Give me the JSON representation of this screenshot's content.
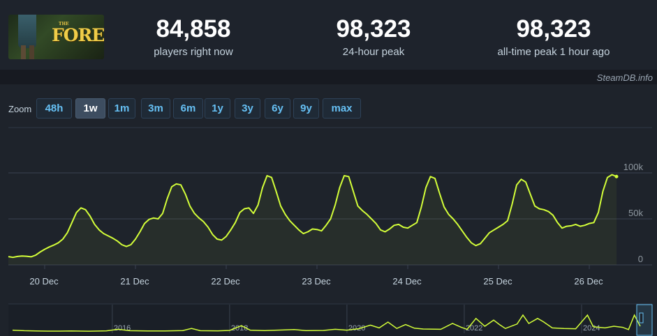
{
  "header": {
    "game_logo": {
      "small": "THE",
      "title": "FOREST"
    },
    "stats": [
      {
        "value": "84,858",
        "label": "players right now"
      },
      {
        "value": "98,323",
        "label": "24-hour peak"
      },
      {
        "value": "98,323",
        "label": "all-time peak 1 hour ago"
      }
    ],
    "credit": "SteamDB.info"
  },
  "zoom": {
    "label": "Zoom",
    "options": [
      "48h",
      "1w",
      "1m",
      "3m",
      "6m",
      "1y",
      "3y",
      "6y",
      "9y",
      "max"
    ],
    "selected": "1w"
  },
  "colors": {
    "line": "#d4ff39",
    "background": "#1e232b",
    "grid": "#3a4250",
    "accent": "#66c0f4"
  },
  "chart_data": [
    {
      "type": "line",
      "title": "",
      "xlabel": "",
      "ylabel": "",
      "x_tick_labels": [
        "20 Dec",
        "21 Dec",
        "22 Dec",
        "23 Dec",
        "24 Dec",
        "25 Dec",
        "26 Dec"
      ],
      "y_tick_labels": [
        "0",
        "50k",
        "100k"
      ],
      "ylim": [
        0,
        100000
      ],
      "x_range_days": [
        19.6,
        26.6
      ],
      "grid": true,
      "legend": "none",
      "series": [
        {
          "points": [
            [
              19.6,
              9000
            ],
            [
              19.65,
              8200
            ],
            [
              19.7,
              9200
            ],
            [
              19.75,
              9600
            ],
            [
              19.8,
              9400
            ],
            [
              19.85,
              8800
            ],
            [
              19.9,
              10500
            ],
            [
              19.95,
              14000
            ],
            [
              20.0,
              17000
            ],
            [
              20.05,
              19500
            ],
            [
              20.1,
              21500
            ],
            [
              20.15,
              24000
            ],
            [
              20.2,
              28000
            ],
            [
              20.25,
              35000
            ],
            [
              20.3,
              46000
            ],
            [
              20.35,
              57000
            ],
            [
              20.4,
              62000
            ],
            [
              20.45,
              60000
            ],
            [
              20.5,
              53000
            ],
            [
              20.55,
              44000
            ],
            [
              20.6,
              38000
            ],
            [
              20.65,
              34000
            ],
            [
              20.7,
              31500
            ],
            [
              20.75,
              29000
            ],
            [
              20.8,
              26000
            ],
            [
              20.85,
              22000
            ],
            [
              20.9,
              20000
            ],
            [
              20.95,
              22000
            ],
            [
              21.0,
              28000
            ],
            [
              21.05,
              36000
            ],
            [
              21.1,
              45000
            ],
            [
              21.15,
              49500
            ],
            [
              21.2,
              51000
            ],
            [
              21.25,
              50000
            ],
            [
              21.3,
              56000
            ],
            [
              21.35,
              72000
            ],
            [
              21.4,
              85000
            ],
            [
              21.45,
              88000
            ],
            [
              21.5,
              87000
            ],
            [
              21.55,
              77000
            ],
            [
              21.6,
              64000
            ],
            [
              21.65,
              56000
            ],
            [
              21.7,
              51000
            ],
            [
              21.75,
              47000
            ],
            [
              21.8,
              41000
            ],
            [
              21.85,
              33000
            ],
            [
              21.9,
              28000
            ],
            [
              21.95,
              27000
            ],
            [
              22.0,
              31000
            ],
            [
              22.05,
              38000
            ],
            [
              22.1,
              46000
            ],
            [
              22.15,
              57000
            ],
            [
              22.2,
              61000
            ],
            [
              22.25,
              62000
            ],
            [
              22.3,
              56000
            ],
            [
              22.35,
              65000
            ],
            [
              22.4,
              84000
            ],
            [
              22.45,
              97000
            ],
            [
              22.5,
              95000
            ],
            [
              22.55,
              80000
            ],
            [
              22.6,
              64000
            ],
            [
              22.65,
              55000
            ],
            [
              22.7,
              48000
            ],
            [
              22.75,
              43000
            ],
            [
              22.8,
              38000
            ],
            [
              22.85,
              34000
            ],
            [
              22.9,
              36000
            ],
            [
              22.95,
              39000
            ],
            [
              23.0,
              38500
            ],
            [
              23.05,
              37000
            ],
            [
              23.1,
              43000
            ],
            [
              23.15,
              50000
            ],
            [
              23.2,
              65000
            ],
            [
              23.25,
              84000
            ],
            [
              23.3,
              97000
            ],
            [
              23.35,
              96000
            ],
            [
              23.4,
              80000
            ],
            [
              23.45,
              64000
            ],
            [
              23.5,
              59000
            ],
            [
              23.55,
              55000
            ],
            [
              23.6,
              50000
            ],
            [
              23.65,
              45000
            ],
            [
              23.7,
              38000
            ],
            [
              23.75,
              36000
            ],
            [
              23.8,
              39000
            ],
            [
              23.85,
              43000
            ],
            [
              23.9,
              44000
            ],
            [
              23.95,
              41000
            ],
            [
              24.0,
              40000
            ],
            [
              24.05,
              43000
            ],
            [
              24.1,
              46000
            ],
            [
              24.15,
              63000
            ],
            [
              24.2,
              84000
            ],
            [
              24.25,
              96000
            ],
            [
              24.3,
              94000
            ],
            [
              24.35,
              78000
            ],
            [
              24.4,
              63000
            ],
            [
              24.45,
              55000
            ],
            [
              24.5,
              50000
            ],
            [
              24.55,
              44000
            ],
            [
              24.6,
              37000
            ],
            [
              24.65,
              30000
            ],
            [
              24.7,
              24000
            ],
            [
              24.75,
              21000
            ],
            [
              24.8,
              23000
            ],
            [
              24.85,
              29000
            ],
            [
              24.9,
              35000
            ],
            [
              24.95,
              38000
            ],
            [
              25.0,
              41000
            ],
            [
              25.05,
              44000
            ],
            [
              25.1,
              48000
            ],
            [
              25.15,
              66000
            ],
            [
              25.2,
              87000
            ],
            [
              25.25,
              93000
            ],
            [
              25.3,
              90000
            ],
            [
              25.35,
              77000
            ],
            [
              25.4,
              64000
            ],
            [
              25.45,
              61000
            ],
            [
              25.5,
              60000
            ],
            [
              25.55,
              58000
            ],
            [
              25.6,
              54000
            ],
            [
              25.65,
              46000
            ],
            [
              25.7,
              40000
            ],
            [
              25.75,
              42000
            ],
            [
              25.8,
              42500
            ],
            [
              25.85,
              44000
            ],
            [
              25.9,
              42000
            ],
            [
              25.95,
              43000
            ],
            [
              26.0,
              45000
            ],
            [
              26.05,
              46000
            ],
            [
              26.1,
              57000
            ],
            [
              26.15,
              80000
            ],
            [
              26.2,
              95000
            ],
            [
              26.25,
              98000
            ],
            [
              26.3,
              96000
            ]
          ]
        }
      ]
    },
    {
      "type": "line",
      "title": "",
      "xlabel": "",
      "ylabel": "",
      "x_tick_labels": [
        "2016",
        "2018",
        "2020",
        "2022",
        "2024"
      ],
      "x_range": [
        2014.3,
        2025.0
      ],
      "ylim": [
        0,
        100000
      ],
      "legend": "none",
      "series": [
        {
          "points": [
            [
              2014.3,
              6000
            ],
            [
              2014.5,
              4000
            ],
            [
              2014.7,
              3000
            ],
            [
              2014.9,
              2500
            ],
            [
              2015.1,
              2500
            ],
            [
              2015.3,
              3000
            ],
            [
              2015.6,
              2200
            ],
            [
              2015.9,
              3500
            ],
            [
              2016.1,
              9000
            ],
            [
              2016.3,
              4000
            ],
            [
              2016.6,
              3000
            ],
            [
              2016.9,
              3200
            ],
            [
              2017.2,
              4500
            ],
            [
              2017.35,
              12000
            ],
            [
              2017.5,
              4000
            ],
            [
              2017.8,
              3500
            ],
            [
              2018.0,
              5000
            ],
            [
              2018.2,
              22000
            ],
            [
              2018.35,
              6000
            ],
            [
              2018.6,
              4500
            ],
            [
              2018.9,
              6500
            ],
            [
              2019.1,
              8000
            ],
            [
              2019.3,
              4500
            ],
            [
              2019.6,
              5000
            ],
            [
              2019.8,
              9000
            ],
            [
              2020.0,
              6000
            ],
            [
              2020.2,
              11000
            ],
            [
              2020.4,
              24000
            ],
            [
              2020.55,
              14000
            ],
            [
              2020.7,
              35000
            ],
            [
              2020.85,
              12000
            ],
            [
              2021.0,
              26000
            ],
            [
              2021.15,
              13000
            ],
            [
              2021.3,
              10000
            ],
            [
              2021.6,
              9000
            ],
            [
              2021.8,
              30000
            ],
            [
              2021.95,
              16000
            ],
            [
              2022.05,
              9000
            ],
            [
              2022.2,
              48000
            ],
            [
              2022.35,
              20000
            ],
            [
              2022.5,
              42000
            ],
            [
              2022.6,
              26000
            ],
            [
              2022.7,
              12000
            ],
            [
              2022.9,
              28000
            ],
            [
              2023.0,
              60000
            ],
            [
              2023.1,
              30000
            ],
            [
              2023.25,
              48000
            ],
            [
              2023.35,
              36000
            ],
            [
              2023.5,
              14000
            ],
            [
              2023.7,
              12000
            ],
            [
              2023.9,
              11000
            ],
            [
              2024.1,
              60000
            ],
            [
              2024.2,
              18000
            ],
            [
              2024.4,
              14000
            ],
            [
              2024.55,
              20000
            ],
            [
              2024.7,
              16000
            ],
            [
              2024.8,
              8000
            ],
            [
              2024.9,
              60000
            ],
            [
              2025.0,
              20000
            ]
          ]
        }
      ]
    }
  ]
}
